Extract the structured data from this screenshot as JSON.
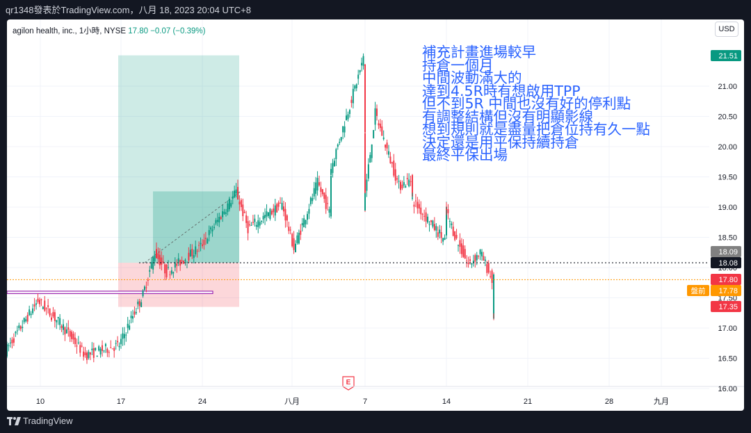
{
  "topbar": {
    "text": "qr1348發表於TradingView.com，八月 18, 2023 20:04 UTC+8"
  },
  "header": {
    "symbol": "agilon health, inc., 1小時, NYSE",
    "price": "17.80",
    "change": "−0.07 (−0.39%)",
    "currency_button": "USD"
  },
  "annotation": "補充計畫進場較早\n持倉一個月\n中間波動滿大的\n達到4.5R時有想啟用TPP\n但不到5R 中間也沒有好的停利點\n有調整結構但沒有明顯影線\n想到規則就是盡量把倉位持有久一點\n決定還是用平保持續持倉\n最終平保出場",
  "earnings_marker": "E",
  "footer": {
    "brand": "TradingView"
  },
  "colors": {
    "up": "#089981",
    "down": "#f23645",
    "profit_zone": "#089981",
    "loss_zone": "#f23645",
    "annotation": "#2962ff",
    "premarket": "#ff9800"
  },
  "chart_data": {
    "type": "candlestick",
    "timeframe": "1小時",
    "ylim": [
      16.0,
      21.6
    ],
    "y_ticks": [
      16.0,
      16.5,
      17.0,
      17.5,
      18.0,
      18.5,
      19.0,
      19.5,
      20.0,
      20.5,
      21.0
    ],
    "x_ticks": [
      "10",
      "17",
      "24",
      "八月",
      "7",
      "14",
      "21",
      "28",
      "九月"
    ],
    "series_anchors": [
      {
        "x": "7/7",
        "price": 16.62
      },
      {
        "x": "7/10",
        "price": 17.45
      },
      {
        "x": "7/12",
        "price": 17.05
      },
      {
        "x": "7/14",
        "price": 16.55
      },
      {
        "x": "7/17",
        "price": 16.72
      },
      {
        "x": "7/18",
        "price": 17.15
      },
      {
        "x": "7/19",
        "price": 17.55
      },
      {
        "x": "7/20",
        "price": 18.25
      },
      {
        "x": "7/21",
        "price": 17.92
      },
      {
        "x": "7/24",
        "price": 18.35
      },
      {
        "x": "7/26",
        "price": 18.95
      },
      {
        "x": "7/27",
        "price": 19.25
      },
      {
        "x": "7/28",
        "price": 18.65
      },
      {
        "x": "7/31",
        "price": 19.05
      },
      {
        "x": "8/1",
        "price": 18.32
      },
      {
        "x": "8/3",
        "price": 19.4
      },
      {
        "x": "8/4",
        "price": 18.92
      },
      {
        "x": "8/4",
        "price": 19.55
      },
      {
        "x": "8/7",
        "price": 21.45
      },
      {
        "x": "8/7",
        "price": 19.0
      },
      {
        "x": "8/8",
        "price": 20.55
      },
      {
        "x": "8/9",
        "price": 19.95
      },
      {
        "x": "8/10",
        "price": 19.35
      },
      {
        "x": "8/11",
        "price": 19.45
      },
      {
        "x": "8/11",
        "price": 19.15
      },
      {
        "x": "8/14",
        "price": 18.45
      },
      {
        "x": "8/14",
        "price": 19.0
      },
      {
        "x": "8/15",
        "price": 18.45
      },
      {
        "x": "8/16",
        "price": 18.05
      },
      {
        "x": "8/17",
        "price": 18.25
      },
      {
        "x": "8/18",
        "price": 17.8
      },
      {
        "x": "8/18",
        "price": 17.2
      },
      {
        "x": "8/18",
        "price": 17.8
      }
    ],
    "position": {
      "profit_zone": {
        "from": "7/17",
        "to": "7/27",
        "top": 21.51,
        "bottom": 18.08
      },
      "profit_zone_inner": {
        "from": "7/20",
        "to": "7/27",
        "top": 19.26
      },
      "loss_zone": {
        "from": "7/17",
        "to": "7/27",
        "top": 18.08,
        "bottom": 17.35
      }
    },
    "horizontal_lines": [
      {
        "price": 18.08,
        "style": "dotted"
      },
      {
        "price": 17.8,
        "style": "dotted-orange"
      }
    ],
    "support_band": {
      "from": "7/7",
      "to": "7/21",
      "top": 17.61,
      "bottom": 17.57
    },
    "price_labels": [
      {
        "value": "21.51",
        "color": "#089981"
      },
      {
        "value": "18.09",
        "color": "#808080"
      },
      {
        "value": "18.08",
        "color": "#131722"
      },
      {
        "value": "17.80",
        "color": "#f23645"
      },
      {
        "value": "17.78",
        "prefix": "盤前",
        "color": "#ff9800"
      },
      {
        "value": "17.35",
        "color": "#f23645"
      }
    ]
  }
}
